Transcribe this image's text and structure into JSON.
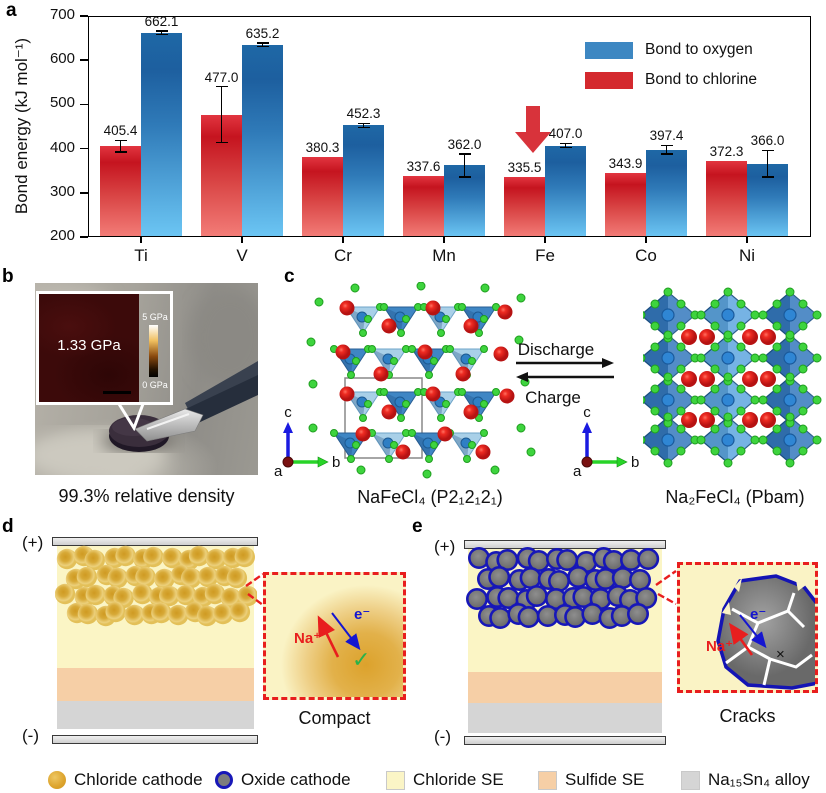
{
  "panel_labels": {
    "a": "a",
    "b": "b",
    "c": "c",
    "d": "d",
    "e": "e"
  },
  "chart_data": {
    "type": "bar",
    "title": "",
    "ylabel": "Bond energy (kJ mol⁻¹)",
    "xlabel": "",
    "ylim": [
      200,
      700
    ],
    "ytick_step": 100,
    "grid": false,
    "legend_position": "top-right",
    "value_labels": true,
    "categories": [
      "Ti",
      "V",
      "Cr",
      "Mn",
      "Fe",
      "Co",
      "Ni"
    ],
    "series": [
      {
        "name": "Bond to chlorine",
        "color": "#d4292e",
        "values": [
          405.4,
          477.0,
          380.3,
          337.6,
          335.5,
          343.9,
          372.3
        ],
        "errors": [
          13,
          63,
          0,
          0,
          0,
          0,
          0
        ]
      },
      {
        "name": "Bond to oxygen",
        "color": "#3d87c2",
        "values": [
          662.1,
          635.2,
          452.3,
          362.0,
          407.0,
          397.4,
          366.0
        ],
        "errors": [
          4,
          4,
          5,
          26,
          5,
          10,
          30
        ]
      }
    ],
    "legend": [
      {
        "label": "Bond to oxygen",
        "color": "#3d87c2"
      },
      {
        "label": "Bond to chlorine",
        "color": "#d4292e"
      }
    ],
    "annotation": {
      "type": "down-arrow",
      "category": "Fe",
      "series": "Bond to chlorine",
      "color": "#d8333b"
    }
  },
  "panel_b": {
    "inset_value": "1.33 GPa",
    "colorbar_top": "5 GPa",
    "colorbar_bottom": "0 GPa",
    "caption": "99.3% relative density"
  },
  "panel_c": {
    "left_caption": "NaFeCl₄ (P2₁2₁2₁)",
    "right_caption": "Na₂FeCl₄ (Pbam)",
    "forward_label": "Discharge",
    "backward_label": "Charge",
    "axis_a": "a",
    "axis_b": "b",
    "axis_c": "c"
  },
  "panel_d": {
    "positive": "(+)",
    "negative": "(-)",
    "ion_label": "Na⁺",
    "electron_label": "e⁻",
    "check": "✓",
    "caption": "Compact"
  },
  "panel_e": {
    "positive": "(+)",
    "negative": "(-)",
    "ion_label": "Na⁺",
    "electron_label": "e⁻",
    "cross": "×",
    "caption": "Cracks"
  },
  "bottom_legend": {
    "items": [
      {
        "label": "Chloride cathode",
        "swatch": "gold-circle",
        "color": "#dca32c"
      },
      {
        "label": "Oxide cathode",
        "swatch": "gray-circle-blue-ring",
        "color": "#7d7d7d",
        "ring": "#1818b8"
      },
      {
        "label": "Chloride SE",
        "swatch": "square",
        "color": "#fbf5c6"
      },
      {
        "label": "Sulfide SE",
        "swatch": "square",
        "color": "#f6cfa6"
      },
      {
        "label": "Na₁₅Sn₄ alloy",
        "swatch": "square",
        "color": "#d5d5d5"
      }
    ]
  },
  "colors": {
    "bar_red_top": "#c5141f",
    "bar_red_bottom": "#f37d78",
    "bar_blue_top": "#1e68a6",
    "bar_blue_bottom": "#6cc6f4",
    "inset_border": "#e81e1e",
    "chloride_se": "#fbf5c5",
    "sulfide_se": "#f6cfa6",
    "alloy": "#d5d5d5"
  }
}
